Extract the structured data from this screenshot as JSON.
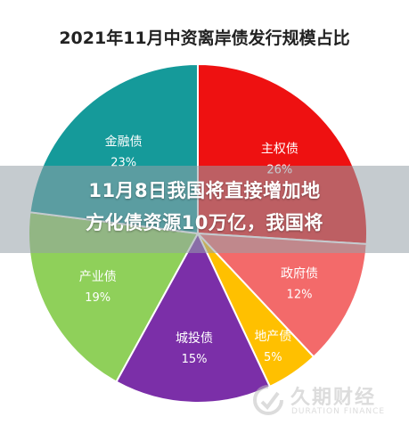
{
  "chart_data": {
    "type": "pie",
    "title": "2021年11月中资离岸债发行规模占比",
    "slices": [
      {
        "label": "主权债",
        "value": 26,
        "value_label": "26%",
        "color": "#ee1111"
      },
      {
        "label": "政府债",
        "value": 12,
        "value_label": "12%",
        "color": "#f36a6a"
      },
      {
        "label": "地产债",
        "value": 5,
        "value_label": "5%",
        "color": "#ffc000"
      },
      {
        "label": "城投债",
        "value": 15,
        "value_label": "15%",
        "color": "#7b2fa8"
      },
      {
        "label": "产业债",
        "value": 19,
        "value_label": "19%",
        "color": "#8fd05a"
      },
      {
        "label": "金融债",
        "value": 23,
        "value_label": "23%",
        "color": "#159a9a"
      }
    ]
  },
  "banner": {
    "line1": "11月8日我国将直接增加地",
    "line2": "方化债资源10万亿，我国将"
  },
  "watermark": {
    "brand": "久期财经",
    "brand_en": "DURATION FINANCE"
  }
}
